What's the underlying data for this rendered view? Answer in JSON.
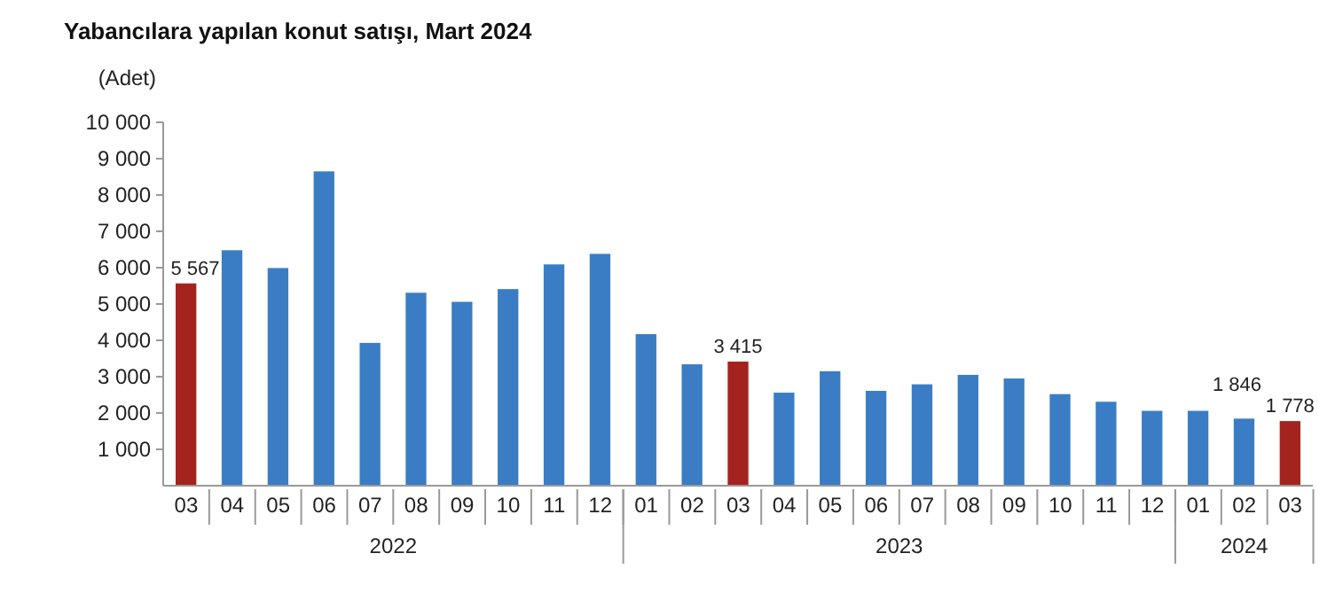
{
  "chart_data": {
    "type": "bar",
    "title": "Yabancılara yapılan konut satışı, Mart 2024",
    "ylabel": "(Adet)",
    "categories": [
      "03",
      "04",
      "05",
      "06",
      "07",
      "08",
      "09",
      "10",
      "11",
      "12",
      "01",
      "02",
      "03",
      "04",
      "05",
      "06",
      "07",
      "08",
      "09",
      "10",
      "11",
      "12",
      "01",
      "02",
      "03"
    ],
    "annotations": [
      "2022",
      "2023",
      "2024"
    ],
    "values": [
      5567,
      6480,
      5990,
      8650,
      3930,
      5310,
      5060,
      5410,
      6090,
      6380,
      4170,
      3340,
      3415,
      2560,
      3150,
      2610,
      2790,
      3050,
      2950,
      2520,
      2310,
      2060,
      2060,
      1846,
      1778
    ],
    "colors": [
      "#a5231f",
      "#3b7dc4",
      "#3b7dc4",
      "#3b7dc4",
      "#3b7dc4",
      "#3b7dc4",
      "#3b7dc4",
      "#3b7dc4",
      "#3b7dc4",
      "#3b7dc4",
      "#3b7dc4",
      "#3b7dc4",
      "#a5231f",
      "#3b7dc4",
      "#3b7dc4",
      "#3b7dc4",
      "#3b7dc4",
      "#3b7dc4",
      "#3b7dc4",
      "#3b7dc4",
      "#3b7dc4",
      "#3b7dc4",
      "#3b7dc4",
      "#3b7dc4",
      "#a5231f"
    ],
    "value_labels": [
      "5 567",
      null,
      null,
      null,
      null,
      null,
      null,
      null,
      null,
      null,
      null,
      null,
      "3 415",
      null,
      null,
      null,
      null,
      null,
      null,
      null,
      null,
      null,
      null,
      "1 846",
      "1 778"
    ],
    "ylim": [
      0,
      10000
    ],
    "yticks": [
      {
        "value": 1000,
        "label": "1 000"
      },
      {
        "value": 2000,
        "label": "2 000"
      },
      {
        "value": 3000,
        "label": "3 000"
      },
      {
        "value": 4000,
        "label": "4 000"
      },
      {
        "value": 5000,
        "label": "5 000"
      },
      {
        "value": 6000,
        "label": "6 000"
      },
      {
        "value": 7000,
        "label": "7 000"
      },
      {
        "value": 8000,
        "label": "8 000"
      },
      {
        "value": 9000,
        "label": "9 000"
      },
      {
        "value": 10000,
        "label": "10 000"
      }
    ]
  }
}
